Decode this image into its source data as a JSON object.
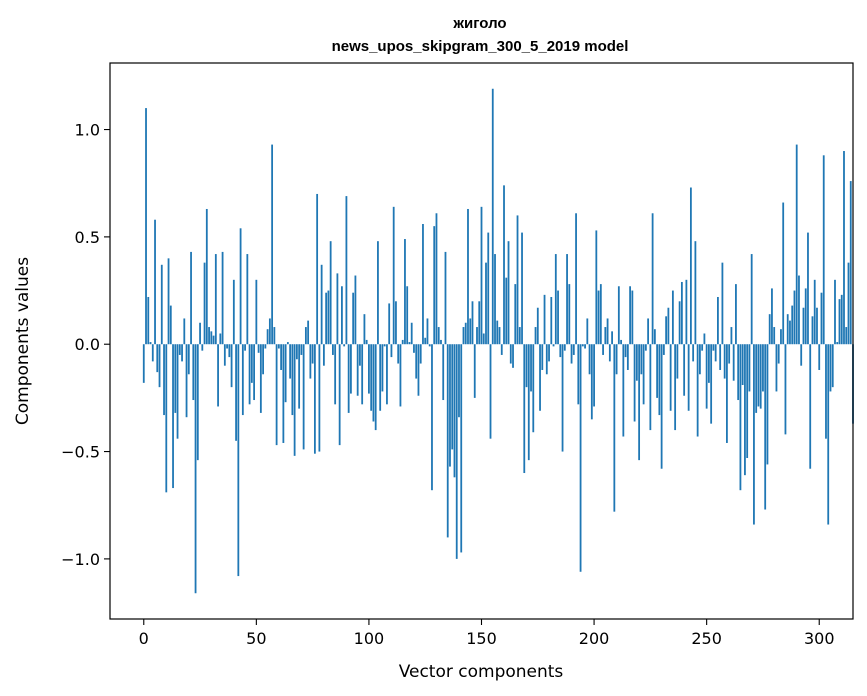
{
  "chart_data": {
    "type": "bar",
    "title": "жиголо",
    "subtitle": "news_upos_skipgram_300_5_2019 model",
    "xlabel": "Vector components",
    "ylabel": "Components values",
    "xlim": [
      -15,
      315
    ],
    "ylim": [
      -1.28,
      1.31
    ],
    "xticks": [
      0,
      50,
      100,
      150,
      200,
      250,
      300
    ],
    "xtick_labels": [
      "0",
      "50",
      "100",
      "150",
      "200",
      "250",
      "300"
    ],
    "yticks": [
      -1.0,
      -0.5,
      0.0,
      0.5,
      1.0
    ],
    "ytick_labels": [
      "−1.0",
      "−0.5",
      "0.0",
      "0.5",
      "1.0"
    ],
    "bar_color": "#1f77b4",
    "values": [
      -0.18,
      1.1,
      0.22,
      0.01,
      -0.08,
      0.58,
      -0.13,
      -0.2,
      0.37,
      -0.33,
      -0.69,
      0.4,
      0.18,
      -0.67,
      -0.32,
      -0.44,
      -0.05,
      -0.08,
      0.12,
      -0.34,
      -0.14,
      0.43,
      -0.26,
      -1.16,
      -0.54,
      0.1,
      -0.03,
      0.38,
      0.63,
      0.08,
      0.06,
      0.04,
      0.42,
      -0.29,
      0.05,
      0.43,
      -0.1,
      -0.02,
      -0.06,
      -0.2,
      0.3,
      -0.45,
      -1.08,
      0.54,
      -0.33,
      -0.03,
      0.42,
      -0.28,
      -0.18,
      -0.26,
      0.3,
      -0.04,
      -0.32,
      -0.14,
      -0.02,
      0.07,
      0.12,
      0.93,
      0.08,
      -0.47,
      -0.02,
      -0.12,
      -0.46,
      -0.27,
      0.01,
      -0.16,
      -0.33,
      -0.52,
      -0.07,
      -0.3,
      -0.05,
      -0.49,
      0.08,
      0.11,
      -0.16,
      -0.09,
      -0.51,
      0.7,
      -0.5,
      0.37,
      -0.1,
      0.24,
      0.25,
      0.48,
      -0.05,
      -0.28,
      0.33,
      -0.47,
      0.27,
      -0.01,
      0.69,
      -0.32,
      -0.23,
      0.24,
      0.32,
      -0.24,
      -0.1,
      -0.28,
      0.14,
      0.02,
      -0.23,
      -0.31,
      -0.36,
      -0.4,
      0.48,
      -0.31,
      -0.22,
      -0.01,
      -0.28,
      0.19,
      -0.06,
      0.64,
      0.2,
      -0.09,
      -0.29,
      0.02,
      0.49,
      0.27,
      0.01,
      0.1,
      -0.04,
      -0.16,
      -0.24,
      -0.09,
      0.56,
      0.03,
      0.12,
      -0.01,
      -0.68,
      0.55,
      0.61,
      0.08,
      0.02,
      -0.26,
      0.43,
      -0.9,
      -0.57,
      -0.49,
      -0.62,
      -1.0,
      -0.34,
      -0.97,
      0.08,
      0.1,
      0.63,
      0.12,
      0.2,
      -0.25,
      0.08,
      0.2,
      0.64,
      0.05,
      0.38,
      0.52,
      -0.44,
      1.19,
      0.42,
      0.11,
      0.08,
      -0.05,
      0.74,
      0.31,
      0.48,
      -0.09,
      -0.11,
      0.28,
      0.6,
      0.08,
      0.52,
      -0.6,
      -0.2,
      -0.54,
      -0.22,
      -0.41,
      0.08,
      0.17,
      -0.31,
      -0.12,
      0.23,
      -0.14,
      -0.08,
      0.22,
      -0.01,
      0.42,
      0.25,
      -0.06,
      -0.5,
      -0.03,
      0.42,
      0.28,
      -0.09,
      -0.05,
      0.61,
      -0.28,
      -1.06,
      -0.01,
      -0.02,
      0.12,
      -0.14,
      -0.35,
      -0.29,
      0.53,
      0.25,
      0.28,
      -0.05,
      0.08,
      0.12,
      -0.08,
      0.06,
      -0.78,
      -0.14,
      0.27,
      0.02,
      -0.43,
      -0.06,
      -0.12,
      0.27,
      0.25,
      -0.36,
      -0.17,
      -0.54,
      -0.14,
      -0.28,
      -0.03,
      0.12,
      -0.4,
      0.61,
      0.07,
      -0.25,
      -0.33,
      -0.58,
      -0.05,
      0.13,
      0.17,
      -0.31,
      0.25,
      -0.4,
      -0.16,
      0.2,
      0.29,
      -0.24,
      0.3,
      -0.31,
      0.73,
      -0.08,
      0.48,
      -0.43,
      -0.14,
      -0.03,
      0.05,
      -0.3,
      -0.18,
      -0.37,
      -0.03,
      -0.08,
      0.22,
      -0.12,
      0.38,
      -0.16,
      -0.46,
      -0.09,
      0.08,
      -0.17,
      0.28,
      -0.26,
      -0.68,
      -0.19,
      -0.61,
      -0.53,
      -0.22,
      0.42,
      -0.84,
      -0.32,
      -0.29,
      -0.3,
      -0.22,
      -0.77,
      -0.56,
      0.14,
      0.26,
      0.08,
      -0.22,
      -0.09,
      0.07,
      0.66,
      -0.42,
      0.14,
      0.11,
      0.18,
      0.25,
      0.93,
      0.32,
      -0.1,
      0.17,
      0.26,
      0.52,
      -0.58,
      0.13,
      0.3,
      0.17,
      -0.12,
      0.24,
      0.88,
      -0.44,
      -0.84,
      -0.22,
      -0.2,
      0.3,
      0.01,
      0.21,
      0.23,
      0.9,
      0.08,
      0.38,
      0.76,
      -0.37
    ]
  }
}
